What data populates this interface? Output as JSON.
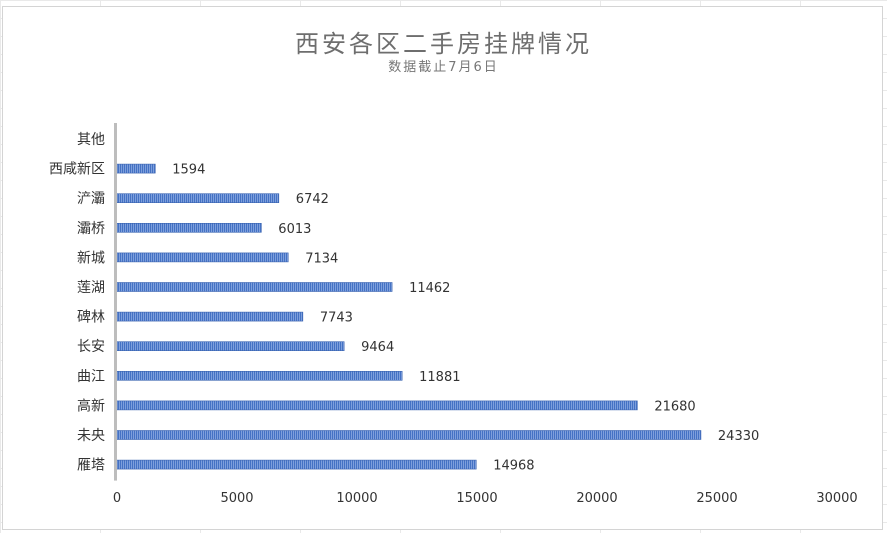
{
  "chart_data": {
    "type": "bar",
    "orientation": "horizontal",
    "title": "西安各区二手房挂牌情况",
    "subtitle": "数据截止7月6日",
    "categories": [
      "其他",
      "西咸新区",
      "浐灞",
      "灞桥",
      "新城",
      "莲湖",
      "碑林",
      "长安",
      "曲江",
      "高新",
      "未央",
      "雁塔"
    ],
    "values": [
      null,
      1594,
      6742,
      6013,
      7134,
      11462,
      7743,
      9464,
      11881,
      21680,
      24330,
      14968
    ],
    "data_labels": [
      "",
      "1594",
      "6742",
      "6013",
      "7134",
      "11462",
      "7743",
      "9464",
      "11881",
      "21680",
      "24330",
      "14968"
    ],
    "xlim": [
      0,
      30000
    ],
    "x_ticks": [
      0,
      5000,
      10000,
      15000,
      20000,
      25000,
      30000
    ],
    "x_tick_labels": [
      "0",
      "5000",
      "10000",
      "15000",
      "20000",
      "25000",
      "30000"
    ],
    "bar_color": "#4472c4",
    "grid": false,
    "legend": "none"
  }
}
